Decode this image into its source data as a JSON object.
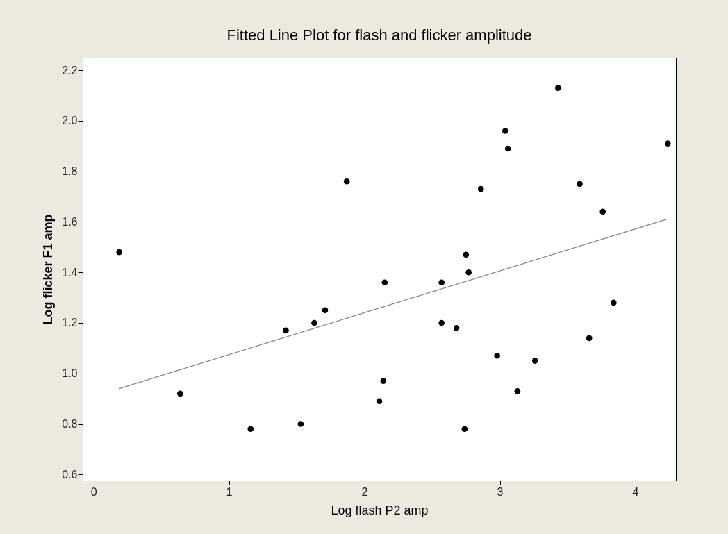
{
  "chart_data": {
    "type": "scatter",
    "title": "Fitted Line Plot for flash and flicker amplitude",
    "xlabel": "Log flash P2 amp",
    "ylabel": "Log flicker F1 amp",
    "series": [
      {
        "color": "#000000",
        "marker": "circle",
        "x": [
          0.19,
          0.64,
          1.16,
          1.42,
          1.53,
          1.63,
          1.71,
          1.87,
          2.15,
          2.57,
          2.75,
          2.77,
          2.86,
          3.04,
          3.06,
          3.43,
          3.59,
          3.76,
          4.24,
          3.84,
          3.66,
          2.57,
          2.68,
          2.98,
          3.26,
          3.13,
          2.14,
          2.11,
          2.74
        ],
        "values": [
          1.48,
          0.92,
          0.78,
          1.17,
          0.8,
          1.2,
          1.25,
          1.76,
          1.36,
          1.36,
          1.47,
          1.4,
          1.73,
          1.96,
          1.89,
          2.13,
          1.75,
          1.64,
          1.91,
          1.28,
          1.14,
          1.2,
          1.18,
          1.07,
          1.05,
          0.93,
          0.97,
          0.89,
          0.78
        ]
      },
      {
        "type": "line",
        "color": "#808080",
        "marker": "none",
        "line_style": "solid",
        "x": [
          0.19,
          4.23
        ],
        "values": [
          0.94,
          1.61
        ]
      }
    ],
    "xlim": [
      -0.08,
      4.3
    ],
    "ylim": [
      0.576,
      2.25
    ],
    "xticks": [
      0,
      1,
      2,
      3,
      4
    ],
    "yticks": [
      0.6,
      0.8,
      {
        "value": 1,
        "label": "1.0"
      },
      1.2,
      1.4,
      1.6,
      1.8,
      {
        "value": 2,
        "label": "2.0"
      },
      2.2
    ],
    "grid": false
  }
}
